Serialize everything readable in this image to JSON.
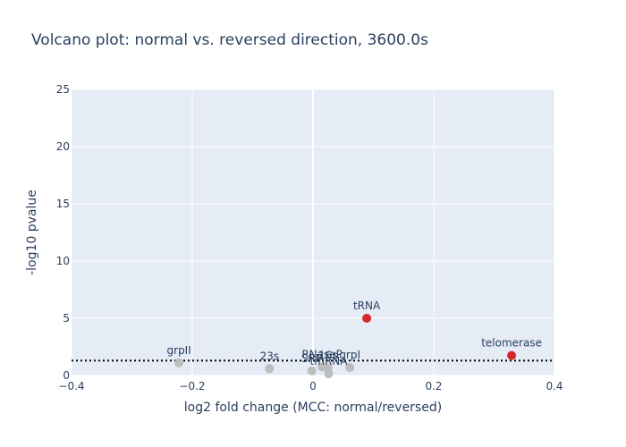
{
  "chart_data": {
    "type": "scatter",
    "title": "Volcano plot: normal vs. reversed direction, 3600.0s",
    "xlabel": "log2 fold change (MCC: normal/reversed)",
    "ylabel": "-log10 pvalue",
    "xlim": [
      -0.4,
      0.4
    ],
    "ylim": [
      0,
      25
    ],
    "x_ticks": [
      "−0.4",
      "−0.2",
      "0",
      "0.2",
      "0.4"
    ],
    "y_ticks": [
      "0",
      "5",
      "10",
      "15",
      "20",
      "25"
    ],
    "grid": true,
    "threshold_y": 1.3,
    "colors": {
      "plot_bg": "#e5ecf6",
      "grid": "#ffffff",
      "significant": "#d62728",
      "not_significant": "#bdbdbd",
      "threshold": "#000000",
      "text": "#2a3f5f"
    },
    "points": [
      {
        "label": "grpII",
        "x": -0.222,
        "y": 1.1,
        "significant": false
      },
      {
        "label": "23s",
        "x": -0.072,
        "y": 0.6,
        "significant": false
      },
      {
        "label": "SRP",
        "x": -0.002,
        "y": 0.4,
        "significant": false
      },
      {
        "label": "RNaseP",
        "x": 0.015,
        "y": 0.75,
        "significant": false
      },
      {
        "label": "16s",
        "x": 0.025,
        "y": 0.65,
        "significant": false
      },
      {
        "label": "tmRNA",
        "x": 0.026,
        "y": 0.15,
        "significant": false
      },
      {
        "label": "grpI",
        "x": 0.061,
        "y": 0.7,
        "significant": false
      },
      {
        "label": "tRNA",
        "x": 0.089,
        "y": 5.0,
        "significant": true
      },
      {
        "label": "telomerase",
        "x": 0.329,
        "y": 1.75,
        "significant": true
      }
    ]
  }
}
